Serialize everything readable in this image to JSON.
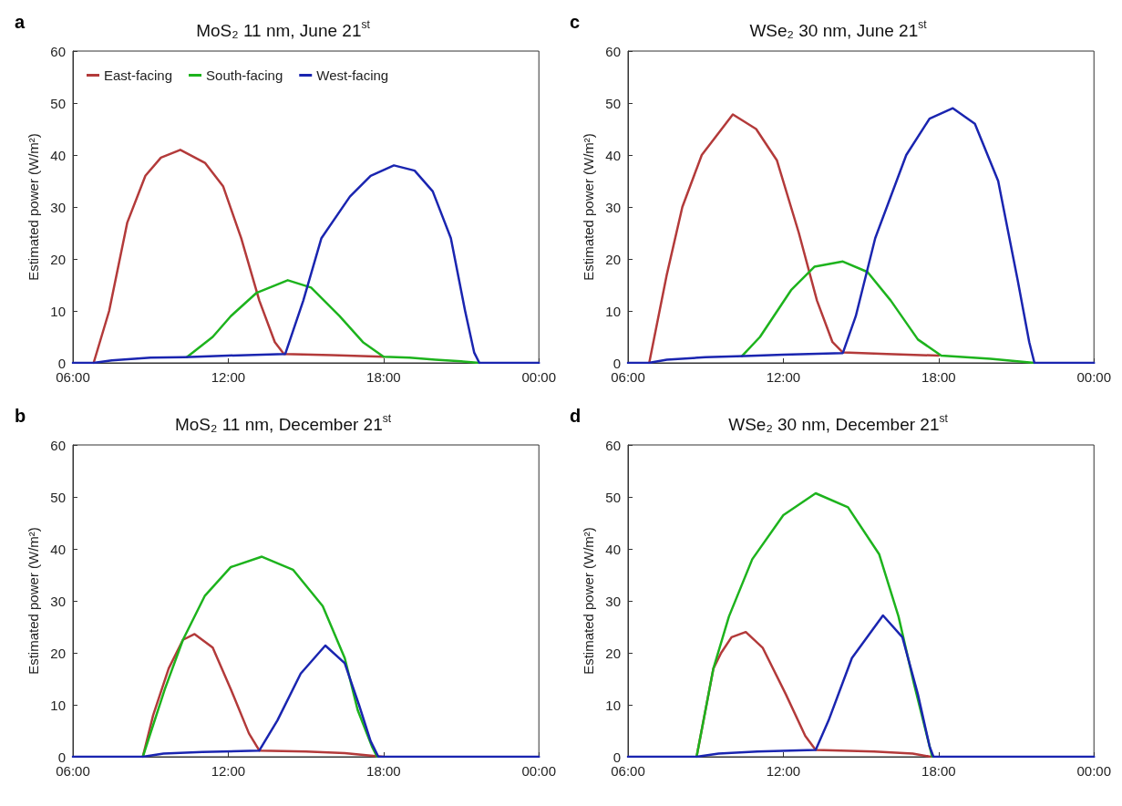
{
  "chart_data": [
    {
      "type": "line",
      "title": "MoS₂ 11 nm, June 21$^{st}$",
      "ylabel": "Estimated power (W/m²)",
      "annotations": [
        "a"
      ],
      "xlim": [
        6,
        24
      ],
      "xticks": [
        {
          "value": 6,
          "label": "06:00"
        },
        {
          "value": 12,
          "label": "12:00"
        },
        {
          "value": 18,
          "label": "18:00"
        },
        {
          "value": 24,
          "label": "00:00"
        }
      ],
      "ylim": [
        0,
        60
      ],
      "yticks": [
        0,
        10,
        20,
        30,
        40,
        50,
        60
      ],
      "grid": false,
      "legend": "top left",
      "marker": "none",
      "line_style": "solid",
      "series": [
        {
          "name": "East-facing",
          "color": "#b33a3a",
          "x": [
            6.8,
            7.4,
            8.1,
            8.8,
            9.4,
            10.15,
            11.1,
            11.8,
            12.5,
            13.2,
            13.8,
            14.15,
            16,
            18
          ],
          "values": [
            0,
            10,
            27,
            36,
            39.5,
            41,
            38.5,
            34,
            24,
            12,
            4,
            1.7,
            1.5,
            1.2
          ]
        },
        {
          "name": "South-facing",
          "color": "#1db31d",
          "x": [
            10.4,
            11.4,
            12.1,
            13.1,
            14.3,
            15.2,
            16.3,
            17.2,
            18,
            19,
            20,
            21,
            21.7
          ],
          "values": [
            1.1,
            5,
            9,
            13.5,
            15.9,
            14.5,
            9,
            4,
            1.2,
            1,
            0.6,
            0.3,
            0
          ]
        },
        {
          "name": "West-facing",
          "color": "#1a25b0",
          "x": [
            6,
            6.8,
            7.5,
            9,
            10.3,
            12,
            14.2,
            14.9,
            15.6,
            16.7,
            17.5,
            18.4,
            19.2,
            19.9,
            20.6,
            21.15,
            21.5,
            21.7,
            24
          ],
          "values": [
            0,
            0,
            0.5,
            1,
            1.1,
            1.4,
            1.7,
            12,
            24,
            32,
            36,
            38,
            37,
            33,
            24,
            10,
            2,
            0,
            0
          ]
        }
      ]
    },
    {
      "type": "line",
      "title": "WSe₂ 30 nm, June 21$^{st}$",
      "ylabel": "Estimated power (W/m²)",
      "annotations": [
        "c"
      ],
      "xlim": [
        6,
        24
      ],
      "xticks": [
        {
          "value": 6,
          "label": "06:00"
        },
        {
          "value": 12,
          "label": "12:00"
        },
        {
          "value": 18,
          "label": "18:00"
        },
        {
          "value": 24,
          "label": "00:00"
        }
      ],
      "ylim": [
        0,
        60
      ],
      "yticks": [
        0,
        10,
        20,
        30,
        40,
        50,
        60
      ],
      "grid": false,
      "legend": false,
      "marker": "none",
      "line_style": "solid",
      "series": [
        {
          "color": "#b33a3a",
          "x": [
            6.82,
            7.5,
            8.1,
            8.85,
            10.05,
            10.95,
            11.75,
            12.6,
            13.3,
            13.9,
            14.3,
            16,
            18
          ],
          "values": [
            0,
            17,
            30,
            40,
            47.8,
            45,
            39,
            25,
            12,
            4,
            2,
            1.7,
            1.4
          ]
        },
        {
          "color": "#1db31d",
          "x": [
            10.4,
            11.1,
            12.3,
            13.2,
            14.3,
            15.25,
            16.15,
            17.2,
            18.1,
            20,
            21.7
          ],
          "values": [
            1.3,
            5,
            14,
            18.5,
            19.5,
            17.5,
            12,
            4.5,
            1.4,
            0.8,
            0
          ]
        },
        {
          "color": "#1a25b0",
          "x": [
            6,
            6.8,
            7.5,
            9,
            10.5,
            12,
            14.3,
            14.8,
            15.55,
            16.75,
            17.65,
            18.55,
            19.4,
            20.3,
            21.05,
            21.5,
            21.7,
            24
          ],
          "values": [
            0,
            0,
            0.6,
            1.1,
            1.3,
            1.6,
            1.9,
            9,
            24,
            40,
            47,
            49,
            46,
            35,
            16,
            4,
            0,
            0
          ]
        }
      ]
    },
    {
      "type": "line",
      "title": "MoS₂ 11 nm, December 21$^{st}$",
      "ylabel": "Estimated power (W/m²)",
      "annotations": [
        "b"
      ],
      "xlim": [
        6,
        24
      ],
      "xticks": [
        {
          "value": 6,
          "label": "06:00"
        },
        {
          "value": 12,
          "label": "12:00"
        },
        {
          "value": 18,
          "label": "18:00"
        },
        {
          "value": 24,
          "label": "00:00"
        }
      ],
      "ylim": [
        0,
        60
      ],
      "yticks": [
        0,
        10,
        20,
        30,
        40,
        50,
        60
      ],
      "grid": false,
      "legend": false,
      "marker": "none",
      "line_style": "solid",
      "series": [
        {
          "color": "#b33a3a",
          "x": [
            8.7,
            9.1,
            9.7,
            10.25,
            10.7,
            11.4,
            12.1,
            12.8,
            13.2,
            15,
            16.5,
            17.5,
            18
          ],
          "values": [
            0,
            8,
            17,
            22.5,
            23.6,
            21,
            13,
            4.5,
            1.2,
            1,
            0.7,
            0.2,
            0
          ]
        },
        {
          "color": "#1db31d",
          "x": [
            8.7,
            9.55,
            10.25,
            11.1,
            12.1,
            13.3,
            14.5,
            15.65,
            16.5,
            17,
            17.55,
            17.75
          ],
          "values": [
            0,
            13,
            22.5,
            31,
            36.5,
            38.5,
            36,
            29,
            19,
            9,
            2,
            0
          ]
        },
        {
          "color": "#1a25b0",
          "x": [
            6,
            8.7,
            9.5,
            11,
            13.2,
            13.9,
            14.8,
            15.75,
            16.5,
            17.05,
            17.5,
            17.8,
            24
          ],
          "values": [
            0,
            0,
            0.6,
            0.9,
            1.2,
            7,
            16,
            21.4,
            18,
            10,
            3,
            0,
            0
          ]
        }
      ]
    },
    {
      "type": "line",
      "title": "WSe₂ 30 nm, December 21$^{st}$",
      "ylabel": "Estimated power (W/m²)",
      "annotations": [
        "d"
      ],
      "xlim": [
        6,
        24
      ],
      "xticks": [
        {
          "value": 6,
          "label": "06:00"
        },
        {
          "value": 12,
          "label": "12:00"
        },
        {
          "value": 18,
          "label": "18:00"
        },
        {
          "value": 24,
          "label": "00:00"
        }
      ],
      "ylim": [
        0,
        60
      ],
      "yticks": [
        0,
        10,
        20,
        30,
        40,
        50,
        60
      ],
      "grid": false,
      "legend": false,
      "marker": "none",
      "line_style": "solid",
      "series": [
        {
          "color": "#b33a3a",
          "x": [
            8.65,
            9.3,
            9.6,
            10,
            10.55,
            11.2,
            12.1,
            12.85,
            13.25,
            15.5,
            17,
            17.7
          ],
          "values": [
            0,
            17,
            20,
            23,
            24,
            21,
            12,
            4,
            1.3,
            1,
            0.6,
            0
          ]
        },
        {
          "color": "#1db31d",
          "x": [
            8.65,
            9.3,
            9.9,
            10.8,
            12,
            13.25,
            14.5,
            15.7,
            16.45,
            17.05,
            17.5,
            17.75
          ],
          "values": [
            0,
            17,
            27,
            38,
            46.5,
            50.7,
            48,
            39,
            27,
            14,
            5,
            0
          ]
        },
        {
          "color": "#1a25b0",
          "x": [
            6,
            8.65,
            9.5,
            11,
            13.25,
            13.75,
            14.65,
            15.85,
            16.6,
            17.2,
            17.65,
            17.8,
            24
          ],
          "values": [
            0,
            0,
            0.6,
            1,
            1.3,
            7,
            19,
            27.2,
            23,
            12,
            2,
            0,
            0
          ]
        }
      ]
    }
  ]
}
